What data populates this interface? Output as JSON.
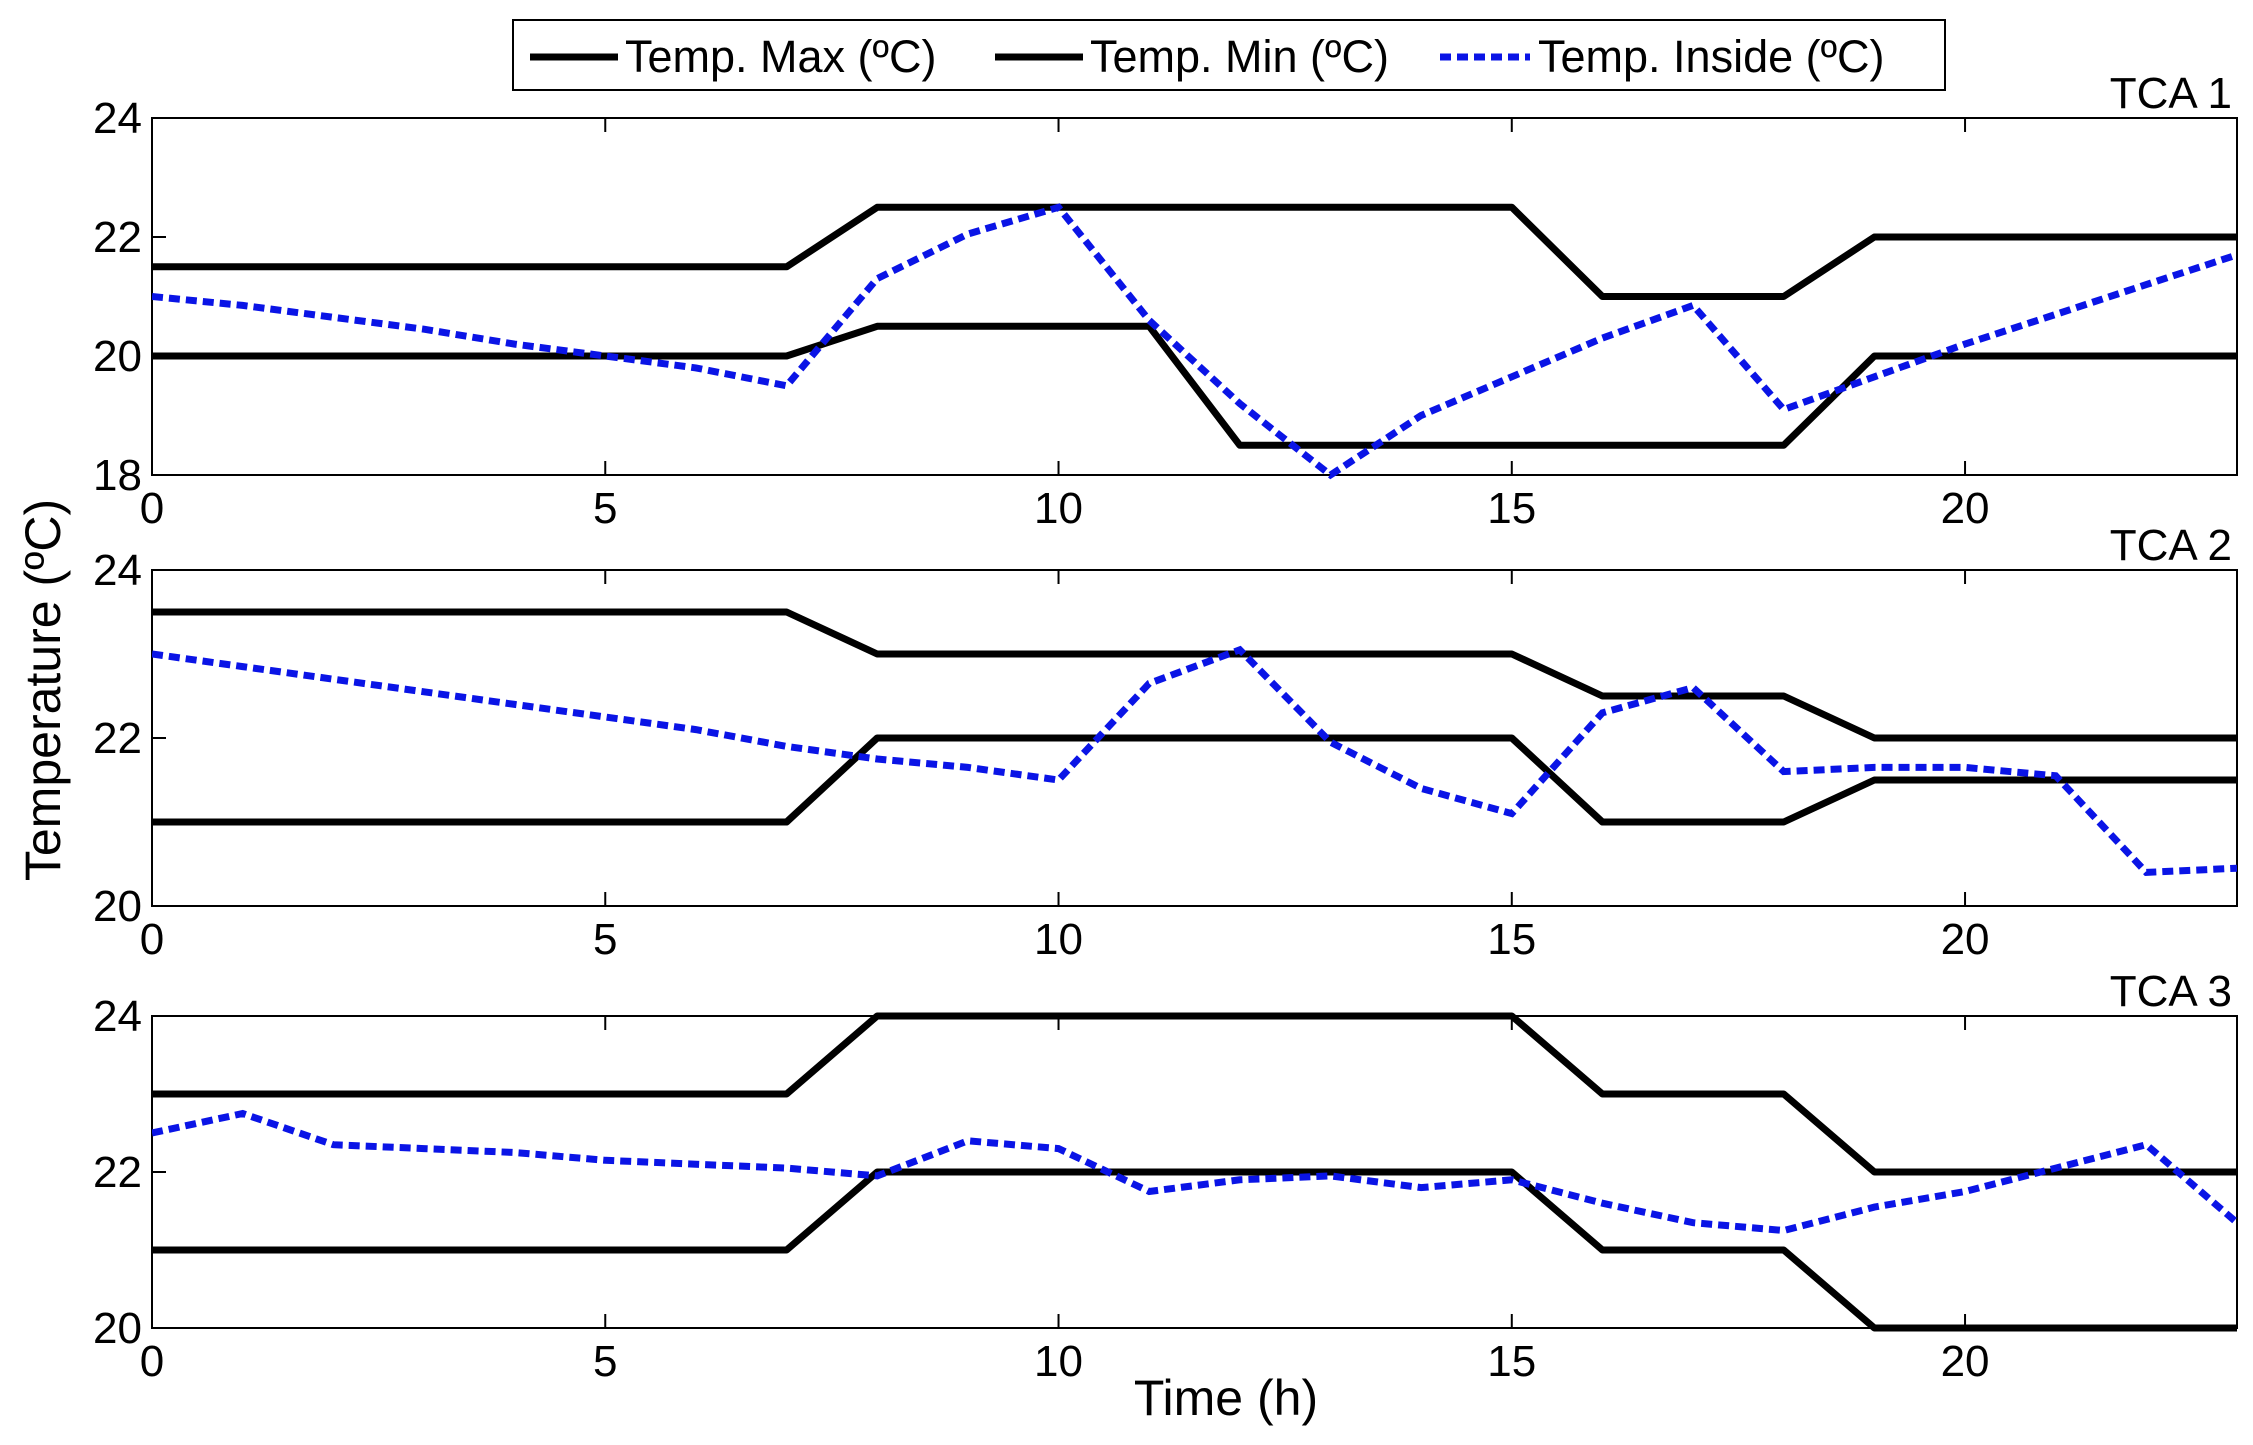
{
  "chart_data": [
    {
      "type": "line",
      "title": "TCA 1",
      "xlabel": "",
      "ylabel": "Temperature (ºC)",
      "xlim": [
        0,
        23
      ],
      "ylim": [
        18,
        24
      ],
      "xticks": [
        0,
        5,
        10,
        15,
        20
      ],
      "yticks": [
        18,
        20,
        22,
        24
      ],
      "series": [
        {
          "name": "Temp. Max (ºC)",
          "style": "solid",
          "color": "#000000",
          "x": [
            0,
            7,
            8,
            15,
            16,
            18,
            19,
            23
          ],
          "y": [
            21.5,
            21.5,
            22.5,
            22.5,
            21.0,
            21.0,
            22.0,
            22.0
          ]
        },
        {
          "name": "Temp. Min (ºC)",
          "style": "solid",
          "color": "#000000",
          "x": [
            0,
            7,
            8,
            11,
            12,
            18,
            19,
            23
          ],
          "y": [
            20.0,
            20.0,
            20.5,
            20.5,
            18.5,
            18.5,
            20.0,
            20.0
          ]
        },
        {
          "name": "Temp. Inside (ºC)",
          "style": "dotted",
          "color": "#0a14e6",
          "x": [
            0,
            1,
            2,
            3,
            4,
            5,
            6,
            7,
            8,
            9,
            10,
            11,
            12,
            13,
            14,
            15,
            16,
            17,
            18,
            19,
            20,
            21,
            22,
            23
          ],
          "y": [
            21.0,
            20.85,
            20.65,
            20.45,
            20.2,
            20.0,
            19.8,
            19.5,
            21.3,
            22.05,
            22.5,
            20.6,
            19.2,
            18.0,
            19.0,
            19.65,
            20.3,
            20.85,
            19.1,
            19.65,
            20.2,
            20.7,
            21.2,
            21.7
          ]
        }
      ]
    },
    {
      "type": "line",
      "title": "TCA 2",
      "xlabel": "",
      "ylabel": "",
      "xlim": [
        0,
        23
      ],
      "ylim": [
        20,
        24
      ],
      "xticks": [
        0,
        5,
        10,
        15,
        20
      ],
      "yticks": [
        20,
        22,
        24
      ],
      "series": [
        {
          "name": "Temp. Max (ºC)",
          "style": "solid",
          "color": "#000000",
          "x": [
            0,
            7,
            8,
            15,
            16,
            18,
            19,
            23
          ],
          "y": [
            23.5,
            23.5,
            23.0,
            23.0,
            22.5,
            22.5,
            22.0,
            22.0
          ]
        },
        {
          "name": "Temp. Min (ºC)",
          "style": "solid",
          "color": "#000000",
          "x": [
            0,
            7,
            8,
            15,
            16,
            18,
            19,
            23
          ],
          "y": [
            21.0,
            21.0,
            22.0,
            22.0,
            21.0,
            21.0,
            21.5,
            21.5
          ]
        },
        {
          "name": "Temp. Inside (ºC)",
          "style": "dotted",
          "color": "#0a14e6",
          "x": [
            0,
            1,
            2,
            3,
            4,
            5,
            6,
            7,
            8,
            9,
            10,
            11,
            12,
            13,
            14,
            15,
            16,
            17,
            18,
            19,
            20,
            21,
            22,
            23
          ],
          "y": [
            23.0,
            22.85,
            22.7,
            22.55,
            22.4,
            22.25,
            22.1,
            21.9,
            21.75,
            21.65,
            21.5,
            22.65,
            23.05,
            21.95,
            21.4,
            21.1,
            22.3,
            22.6,
            21.6,
            21.65,
            21.65,
            21.55,
            20.4,
            20.45
          ]
        }
      ]
    },
    {
      "type": "line",
      "title": "TCA 3",
      "xlabel": "Time (h)",
      "ylabel": "",
      "xlim": [
        0,
        23
      ],
      "ylim": [
        20,
        24
      ],
      "xticks": [
        0,
        5,
        10,
        15,
        20
      ],
      "yticks": [
        20,
        22,
        24
      ],
      "series": [
        {
          "name": "Temp. Max (ºC)",
          "style": "solid",
          "color": "#000000",
          "x": [
            0,
            7,
            8,
            15,
            16,
            18,
            19,
            23
          ],
          "y": [
            23.0,
            23.0,
            24.0,
            24.0,
            23.0,
            23.0,
            22.0,
            22.0
          ]
        },
        {
          "name": "Temp. Min (ºC)",
          "style": "solid",
          "color": "#000000",
          "x": [
            0,
            7,
            8,
            15,
            16,
            18,
            19,
            23
          ],
          "y": [
            21.0,
            21.0,
            22.0,
            22.0,
            21.0,
            21.0,
            20.0,
            20.0
          ]
        },
        {
          "name": "Temp. Inside (ºC)",
          "style": "dotted",
          "color": "#0a14e6",
          "x": [
            0,
            1,
            2,
            3,
            4,
            5,
            6,
            7,
            8,
            9,
            10,
            11,
            12,
            13,
            14,
            15,
            16,
            17,
            18,
            19,
            20,
            21,
            22,
            23
          ],
          "y": [
            22.5,
            22.75,
            22.35,
            22.3,
            22.25,
            22.15,
            22.1,
            22.05,
            21.95,
            22.4,
            22.3,
            21.75,
            21.9,
            21.95,
            21.8,
            21.9,
            21.6,
            21.35,
            21.25,
            21.55,
            21.75,
            22.05,
            22.35,
            21.35
          ]
        }
      ]
    }
  ],
  "legend": {
    "position": "top-center",
    "entries": [
      "Temp. Max (ºC)",
      "Temp. Min (ºC)",
      "Temp. Inside (ºC)"
    ]
  },
  "figure": {
    "ylabel": "Temperature (ºC)",
    "xlabel": "Time (h)"
  }
}
